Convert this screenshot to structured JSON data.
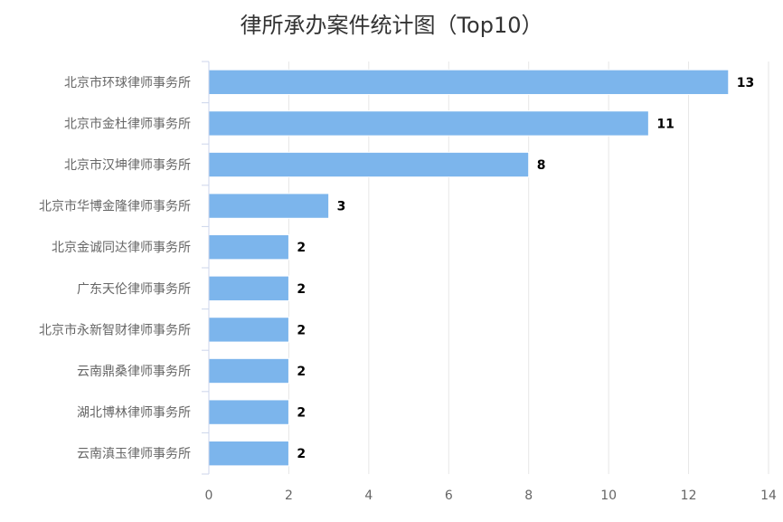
{
  "chart_data": {
    "type": "bar",
    "orientation": "horizontal",
    "title": "律所承办案件统计图（Top10）",
    "categories": [
      "北京市环球律师事务所",
      "北京市金杜律师事务所",
      "北京市汉坤律师事务所",
      "北京市华博金隆律师事务所",
      "北京金诚同达律师事务所",
      "广东天伦律师事务所",
      "北京市永新智财律师事务所",
      "云南鼎桑律师事务所",
      "湖北博林律师事务所",
      "云南滇玉律师事务所"
    ],
    "values": [
      13,
      11,
      8,
      3,
      2,
      2,
      2,
      2,
      2,
      2
    ],
    "xlim": [
      0,
      14
    ],
    "xticks": [
      0,
      2,
      4,
      6,
      8,
      10,
      12,
      14
    ],
    "xlabel": "",
    "ylabel": "",
    "grid": true,
    "bar_color": "#7cb5ec",
    "show_data_labels": true
  }
}
